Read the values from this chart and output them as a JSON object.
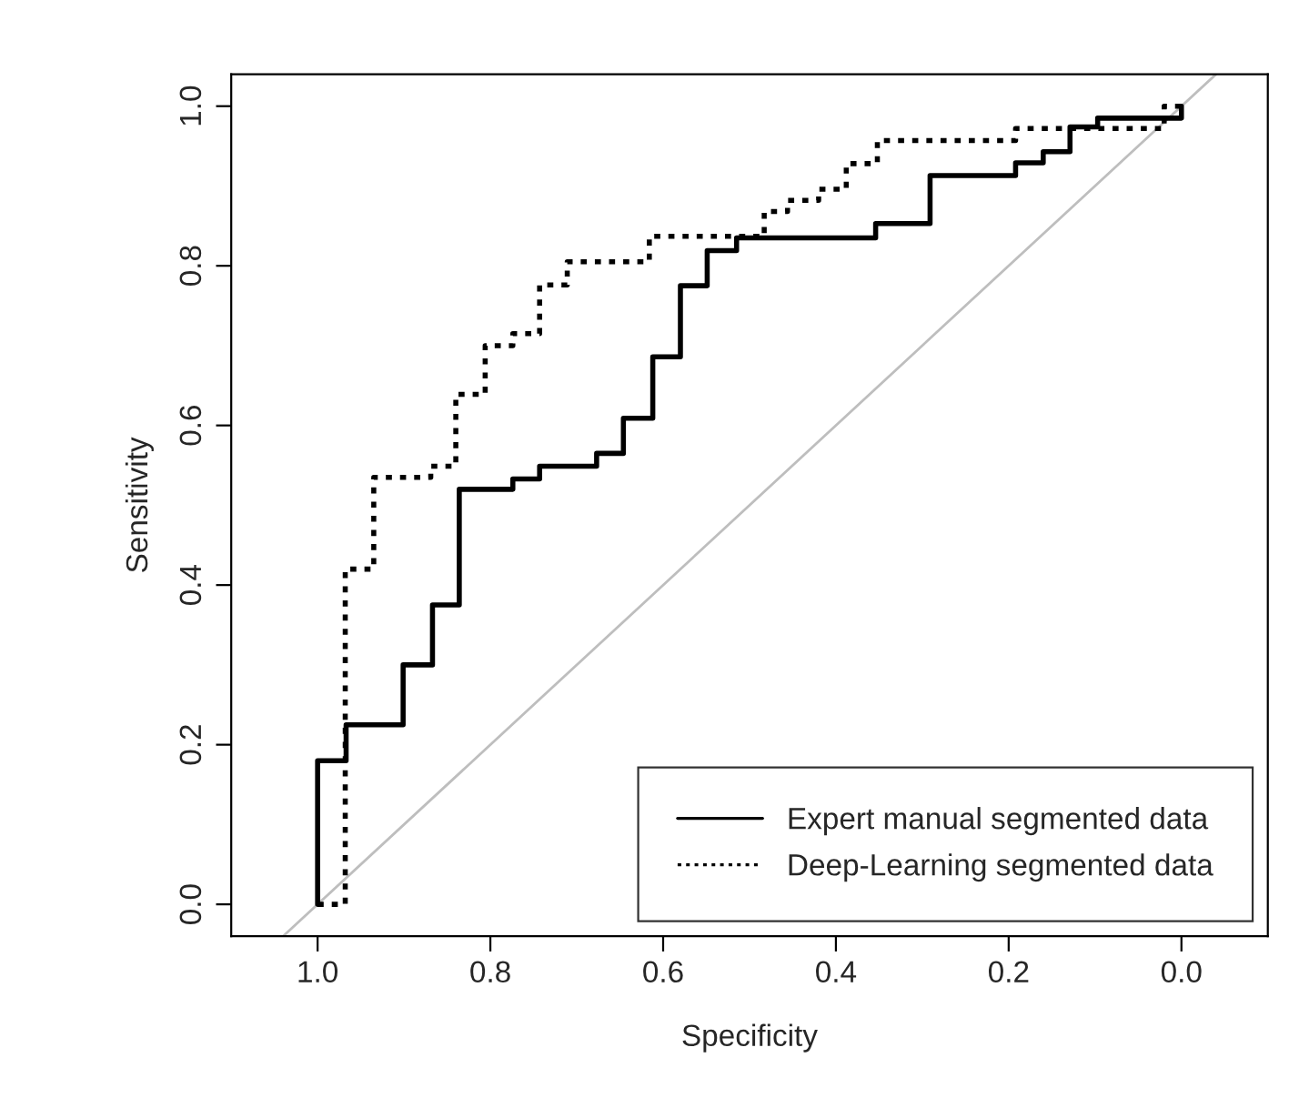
{
  "chart_data": {
    "type": "step",
    "xlabel": "Specificity",
    "ylabel": "Sensitivity",
    "xlim": [
      1.1,
      -0.1
    ],
    "ylim": [
      -0.04,
      1.04
    ],
    "xticks": [
      {
        "value": 1.0,
        "label": "1.0"
      },
      {
        "value": 0.8,
        "label": "0.8"
      },
      {
        "value": 0.6,
        "label": "0.6"
      },
      {
        "value": 0.4,
        "label": "0.4"
      },
      {
        "value": 0.2,
        "label": "0.2"
      },
      {
        "value": 0.0,
        "label": "0.0"
      }
    ],
    "yticks": [
      {
        "value": 0.0,
        "label": "0.0"
      },
      {
        "value": 0.2,
        "label": "0.2"
      },
      {
        "value": 0.4,
        "label": "0.4"
      },
      {
        "value": 0.6,
        "label": "0.6"
      },
      {
        "value": 0.8,
        "label": "0.8"
      },
      {
        "value": 1.0,
        "label": "1.0"
      }
    ],
    "grid": false,
    "legend": "bottom right",
    "series": [
      {
        "type": "line",
        "color": "#bebebe",
        "line_style": "solid",
        "x": [
          1.04,
          -0.04
        ],
        "values": [
          -0.04,
          1.04
        ]
      },
      {
        "name": "Expert manual segmented data",
        "color": "#000000",
        "line_style": "solid",
        "x": [
          1.0,
          1.0,
          0.967,
          0.901,
          0.867,
          0.836,
          0.774,
          0.743,
          0.677,
          0.646,
          0.612,
          0.58,
          0.549,
          0.515,
          0.354,
          0.291,
          0.192,
          0.16,
          0.129,
          0.097,
          0.0
        ],
        "values": [
          0.0,
          0.18,
          0.225,
          0.3,
          0.375,
          0.52,
          0.533,
          0.549,
          0.565,
          0.609,
          0.686,
          0.775,
          0.819,
          0.835,
          0.853,
          0.913,
          0.929,
          0.943,
          0.974,
          0.985,
          1.0
        ]
      },
      {
        "name": "Deep-Learning segmented data",
        "color": "#000000",
        "line_style": "dotted",
        "x": [
          1.0,
          0.968,
          0.935,
          0.869,
          0.84,
          0.806,
          0.774,
          0.743,
          0.711,
          0.616,
          0.483,
          0.456,
          0.42,
          0.388,
          0.352,
          0.192,
          0.02,
          0.0
        ],
        "values": [
          0.0,
          0.42,
          0.535,
          0.549,
          0.639,
          0.7,
          0.715,
          0.776,
          0.805,
          0.837,
          0.868,
          0.882,
          0.896,
          0.928,
          0.957,
          0.972,
          1.0,
          1.0
        ]
      }
    ]
  }
}
